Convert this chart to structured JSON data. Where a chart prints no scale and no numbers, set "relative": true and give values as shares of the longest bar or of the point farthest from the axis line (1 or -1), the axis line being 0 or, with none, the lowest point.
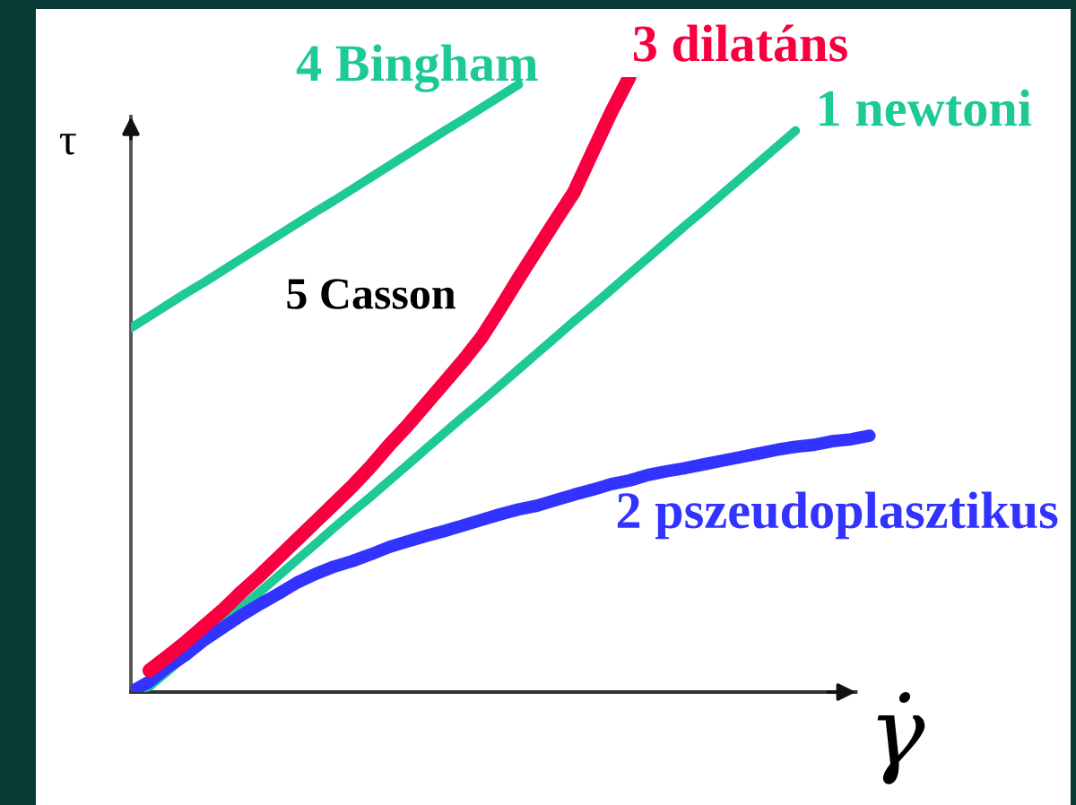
{
  "chart_data": {
    "type": "line",
    "relative": true,
    "xlabel": "γ̇",
    "ylabel": "τ",
    "annotations": [
      "5 Casson"
    ],
    "categories": [
      null,
      null,
      null,
      null,
      null,
      null,
      null,
      null,
      null,
      null,
      null,
      null,
      null,
      null,
      null,
      null,
      null,
      null,
      null,
      null,
      null,
      null,
      null,
      null,
      null,
      null,
      null,
      null,
      null,
      null,
      null,
      null,
      null,
      null,
      null,
      null,
      null,
      null,
      null,
      null,
      null
    ],
    "series": [
      {
        "name": "1 newtoni",
        "color": "#1dc995",
        "values": [
          0,
          0.009,
          0.034,
          0.06,
          0.086,
          0.112,
          0.138,
          0.163,
          0.189,
          0.215,
          0.241,
          0.267,
          0.293,
          0.318,
          0.344,
          0.37,
          0.396,
          0.422,
          0.448,
          0.473,
          0.499,
          0.525,
          0.551,
          0.577,
          0.603,
          0.628,
          0.654,
          0.68,
          0.706,
          0.732,
          0.758,
          0.783,
          0.809,
          0.835,
          0.861,
          0.887,
          0.913,
          null,
          null,
          null,
          null
        ]
      },
      {
        "name": "2 pszeudoplasztikus",
        "color": "#3333ff",
        "values": [
          0,
          0.017,
          0.041,
          0.061,
          0.085,
          0.105,
          0.125,
          0.143,
          0.16,
          0.178,
          0.192,
          0.204,
          0.213,
          0.224,
          0.236,
          0.245,
          0.254,
          0.262,
          0.271,
          0.28,
          0.289,
          0.297,
          0.303,
          0.312,
          0.321,
          0.329,
          0.338,
          0.344,
          0.353,
          0.359,
          0.364,
          0.37,
          0.376,
          0.382,
          0.388,
          0.394,
          0.399,
          0.402,
          0.408,
          0.411,
          0.417
        ]
      },
      {
        "name": "3 dilatáns",
        "color": "#f80040",
        "values": [
          null,
          0.035,
          0.058,
          0.082,
          0.108,
          0.134,
          0.163,
          0.19,
          0.219,
          0.248,
          0.277,
          0.306,
          0.335,
          0.367,
          0.402,
          0.434,
          0.469,
          0.504,
          0.539,
          0.577,
          0.624,
          0.673,
          0.72,
          0.767,
          0.813,
          0.878,
          0.942,
          1,
          null,
          null,
          null,
          null,
          null,
          null,
          null,
          null,
          null,
          null,
          null,
          null,
          null
        ]
      },
      {
        "name": "4 Bingham",
        "color": "#1dc995",
        "values": [
          0.592,
          0.611,
          0.63,
          0.649,
          0.667,
          0.686,
          0.705,
          0.724,
          0.743,
          0.762,
          0.781,
          0.799,
          0.818,
          0.837,
          0.856,
          0.875,
          0.894,
          0.913,
          0.931,
          0.95,
          0.969,
          0.988,
          null,
          null,
          null,
          null,
          null,
          null,
          null,
          null,
          null,
          null,
          null,
          null,
          null,
          null,
          null,
          null,
          null,
          null,
          null
        ]
      }
    ]
  }
}
